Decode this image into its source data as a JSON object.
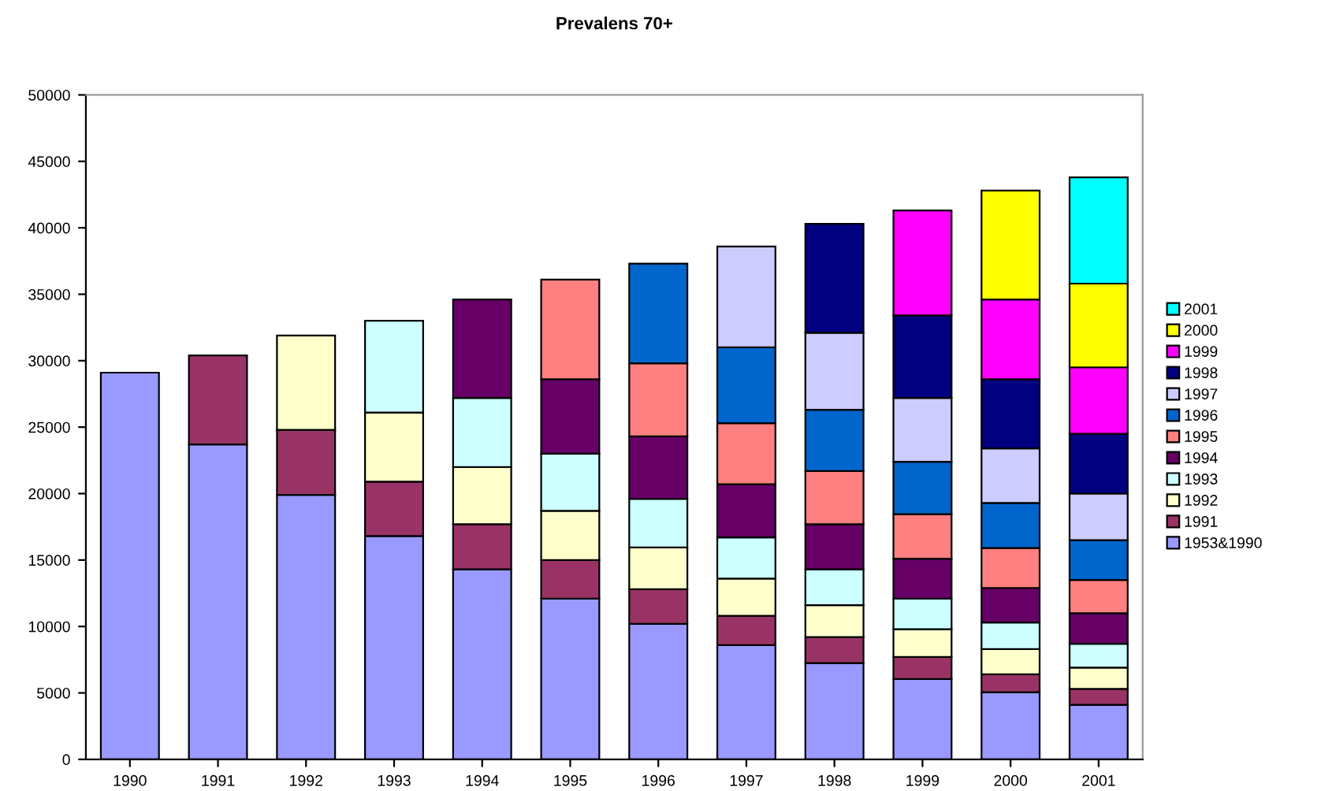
{
  "chart_data": {
    "type": "bar",
    "title": "Prevalens 70+",
    "stacked": true,
    "legend": "right",
    "grid": false,
    "categories": [
      "1990",
      "1991",
      "1992",
      "1993",
      "1994",
      "1995",
      "1996",
      "1997",
      "1998",
      "1999",
      "2000",
      "2001"
    ],
    "ylim": [
      0,
      50000
    ],
    "yticks": [
      0,
      5000,
      10000,
      15000,
      20000,
      25000,
      30000,
      35000,
      40000,
      45000,
      50000
    ],
    "series": [
      {
        "name": "1953&1990",
        "color": "#9999ff",
        "values": [
          29100,
          23700,
          19900,
          16800,
          14300,
          12100,
          10200,
          8600,
          7250,
          6050,
          5050,
          4100
        ]
      },
      {
        "name": "1991",
        "color": "#993366",
        "values": [
          null,
          6700,
          4900,
          4100,
          3400,
          2900,
          2600,
          2200,
          1950,
          1650,
          1350,
          1200
        ]
      },
      {
        "name": "1992",
        "color": "#ffffcc",
        "values": [
          null,
          null,
          7100,
          5200,
          4300,
          3700,
          3150,
          2800,
          2400,
          2100,
          1900,
          1600
        ]
      },
      {
        "name": "1993",
        "color": "#ccffff",
        "values": [
          null,
          null,
          null,
          6900,
          5200,
          4300,
          3650,
          3100,
          2700,
          2300,
          2000,
          1800
        ]
      },
      {
        "name": "1994",
        "color": "#660066",
        "values": [
          null,
          null,
          null,
          null,
          7400,
          5600,
          4700,
          4000,
          3400,
          3000,
          2600,
          2300
        ]
      },
      {
        "name": "1995",
        "color": "#ff8080",
        "values": [
          null,
          null,
          null,
          null,
          null,
          7500,
          5500,
          4600,
          4000,
          3350,
          3000,
          2500
        ]
      },
      {
        "name": "1996",
        "color": "#0066cc",
        "values": [
          null,
          null,
          null,
          null,
          null,
          null,
          7500,
          5700,
          4600,
          3950,
          3400,
          3000
        ]
      },
      {
        "name": "1997",
        "color": "#ccccff",
        "values": [
          null,
          null,
          null,
          null,
          null,
          null,
          null,
          7600,
          5800,
          4800,
          4100,
          3500
        ]
      },
      {
        "name": "1998",
        "color": "#000080",
        "values": [
          null,
          null,
          null,
          null,
          null,
          null,
          null,
          null,
          8200,
          6200,
          5200,
          4500
        ]
      },
      {
        "name": "1999",
        "color": "#ff00ff",
        "values": [
          null,
          null,
          null,
          null,
          null,
          null,
          null,
          null,
          null,
          7900,
          6000,
          5000
        ]
      },
      {
        "name": "2000",
        "color": "#ffff00",
        "values": [
          null,
          null,
          null,
          null,
          null,
          null,
          null,
          null,
          null,
          null,
          8200,
          6300
        ]
      },
      {
        "name": "2001",
        "color": "#00ffff",
        "values": [
          null,
          null,
          null,
          null,
          null,
          null,
          null,
          null,
          null,
          null,
          null,
          8000
        ]
      }
    ]
  }
}
